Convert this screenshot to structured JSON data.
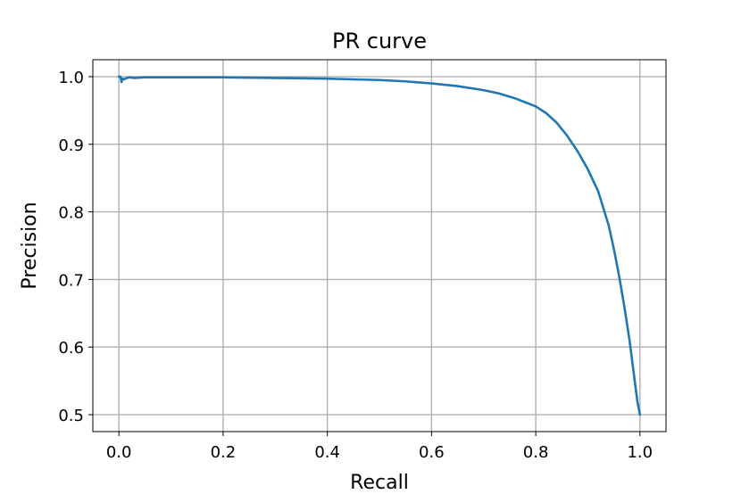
{
  "chart_data": {
    "type": "line",
    "title": "PR curve",
    "xlabel": "Recall",
    "ylabel": "Precision",
    "xlim": [
      -0.05,
      1.05
    ],
    "ylim": [
      0.475,
      1.025
    ],
    "xticks": [
      0.0,
      0.2,
      0.4,
      0.6,
      0.8,
      1.0
    ],
    "xtick_labels": [
      "0.0",
      "0.2",
      "0.4",
      "0.6",
      "0.8",
      "1.0"
    ],
    "yticks": [
      0.5,
      0.6,
      0.7,
      0.8,
      0.9,
      1.0
    ],
    "ytick_labels": [
      "0.5",
      "0.6",
      "0.7",
      "0.8",
      "0.9",
      "1.0"
    ],
    "grid": true,
    "line_color": "#1f77b4",
    "grid_color": "#b0b0b0",
    "series": [
      {
        "x": [
          0.0,
          0.003,
          0.005,
          0.007,
          0.01,
          0.015,
          0.02,
          0.03,
          0.05,
          0.1,
          0.2,
          0.3,
          0.4,
          0.45,
          0.5,
          0.55,
          0.6,
          0.65,
          0.7,
          0.73,
          0.76,
          0.78,
          0.8,
          0.82,
          0.84,
          0.86,
          0.88,
          0.9,
          0.92,
          0.94,
          0.95,
          0.96,
          0.97,
          0.98,
          0.99,
          0.995,
          1.0
        ],
        "y": [
          1.0,
          1.0,
          0.992,
          0.997,
          0.996,
          0.998,
          0.999,
          0.998,
          0.999,
          0.999,
          0.999,
          0.998,
          0.997,
          0.996,
          0.995,
          0.993,
          0.99,
          0.986,
          0.98,
          0.975,
          0.968,
          0.962,
          0.956,
          0.946,
          0.932,
          0.913,
          0.89,
          0.863,
          0.83,
          0.78,
          0.745,
          0.705,
          0.66,
          0.61,
          0.55,
          0.52,
          0.5
        ]
      }
    ]
  }
}
